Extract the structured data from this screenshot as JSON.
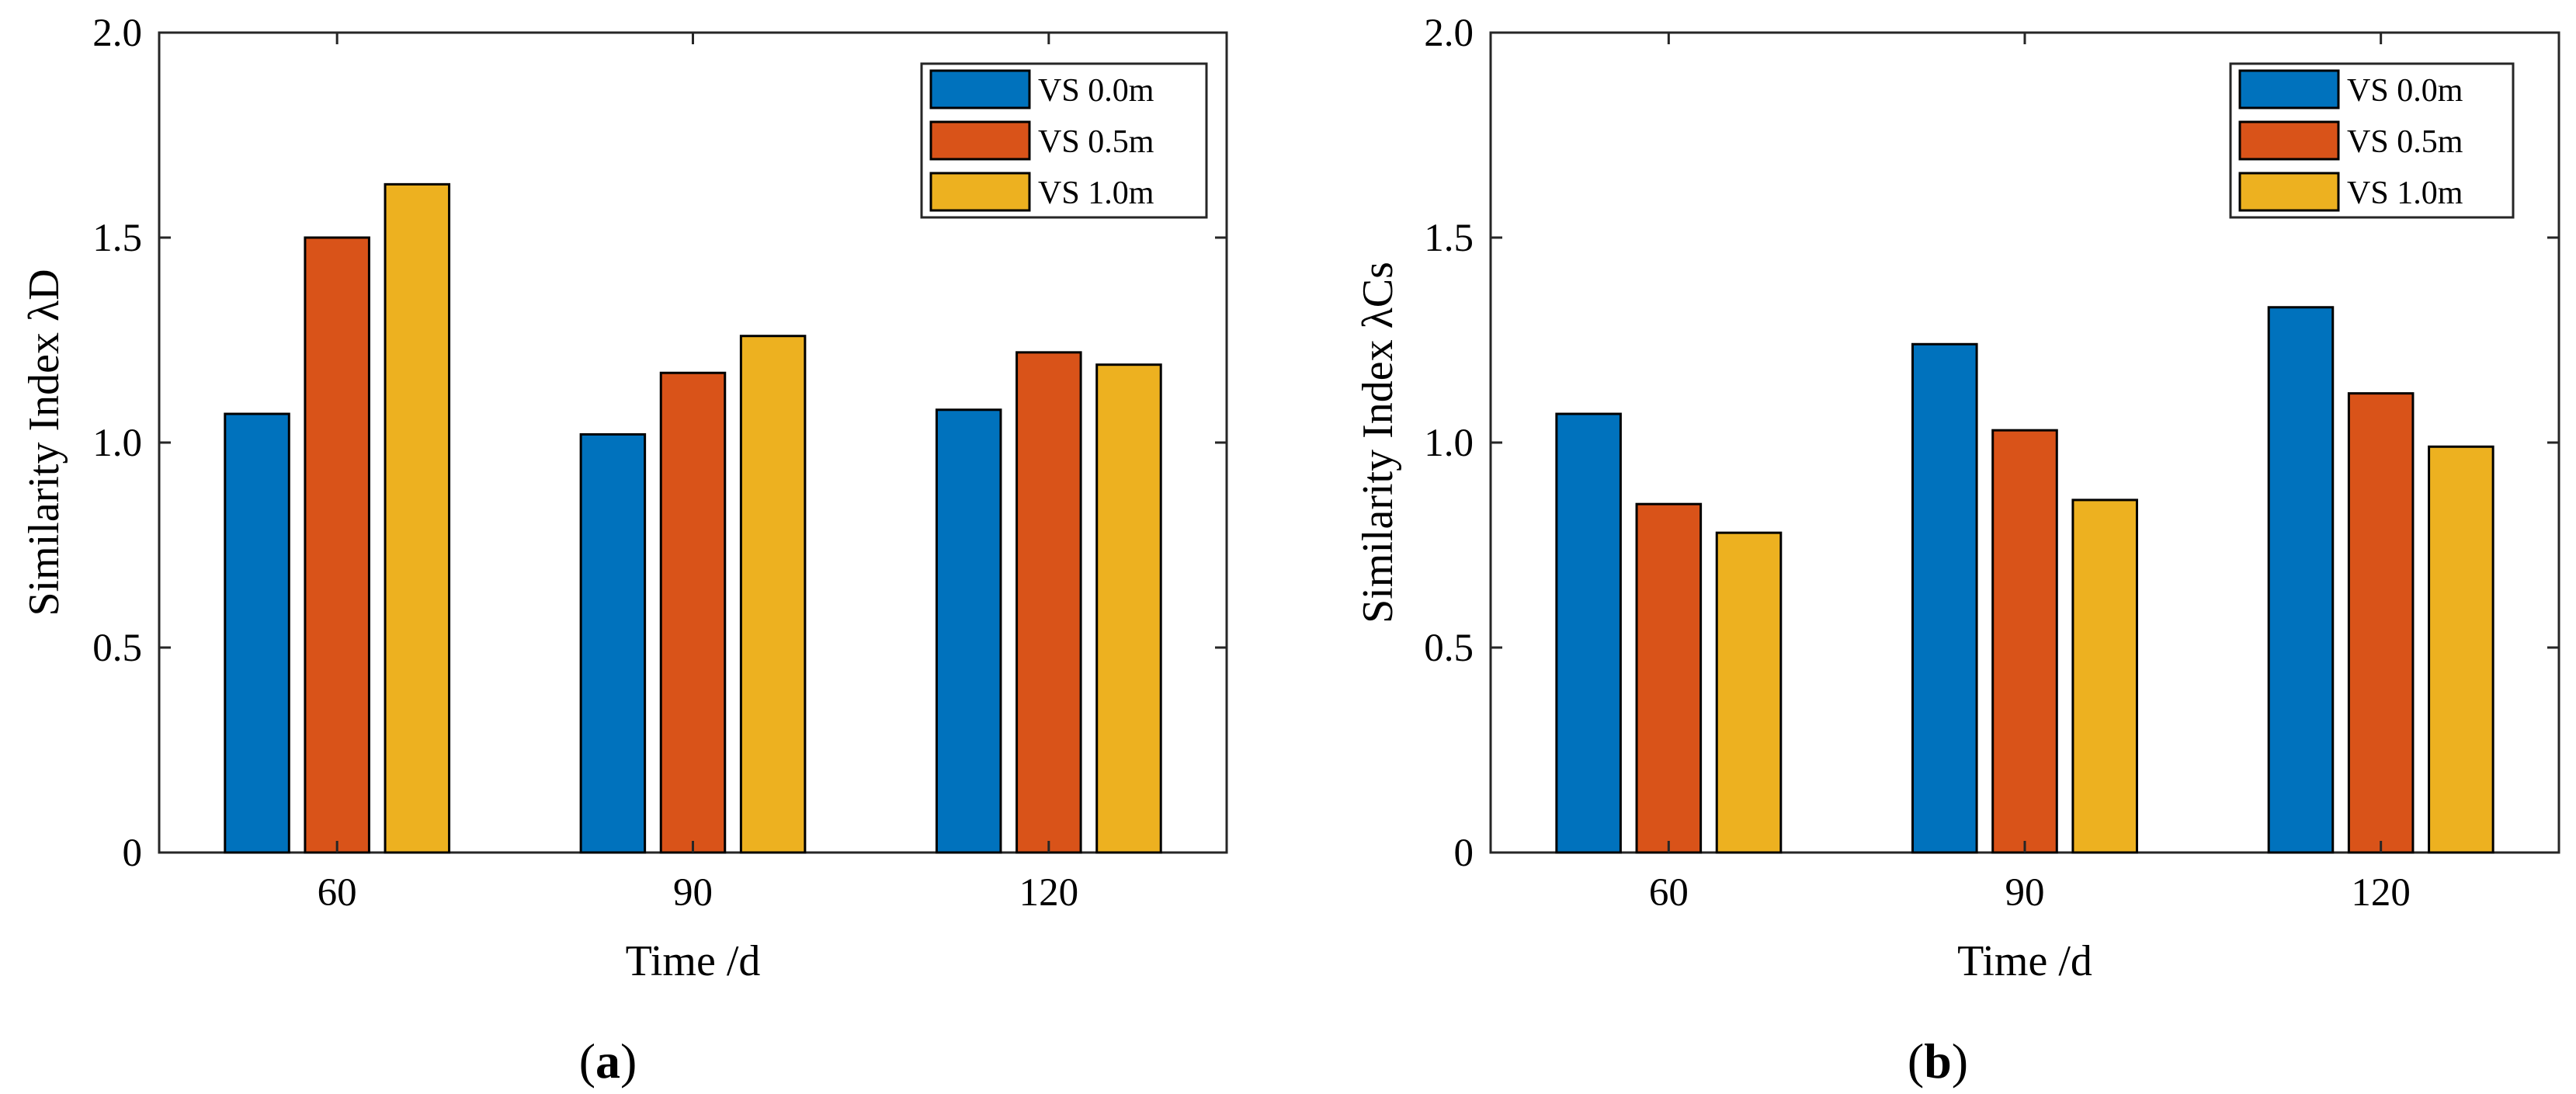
{
  "chart_data": [
    {
      "type": "bar",
      "panel_label": "a",
      "categories": [
        "60",
        "90",
        "120"
      ],
      "series": [
        {
          "name": "VS 0.0m",
          "color": "#0072BD",
          "values": [
            1.07,
            1.02,
            1.08
          ]
        },
        {
          "name": "VS 0.5m",
          "color": "#D95319",
          "values": [
            1.5,
            1.17,
            1.22
          ]
        },
        {
          "name": "VS 1.0m",
          "color": "#EDB120",
          "values": [
            1.63,
            1.26,
            1.19
          ]
        }
      ],
      "title": "",
      "xlabel": "Time /d",
      "ylabel": "Similarity Index λD",
      "ylim": [
        0,
        2.0
      ],
      "yticks": [
        0,
        0.5,
        1.0,
        1.5,
        2.0
      ],
      "ytick_labels": [
        "0",
        "0.5",
        "1.0",
        "1.5",
        "2.0"
      ],
      "grid": false,
      "legend_position": "top-right"
    },
    {
      "type": "bar",
      "panel_label": "b",
      "categories": [
        "60",
        "90",
        "120"
      ],
      "series": [
        {
          "name": "VS 0.0m",
          "color": "#0072BD",
          "values": [
            1.07,
            1.24,
            1.33
          ]
        },
        {
          "name": "VS 0.5m",
          "color": "#D95319",
          "values": [
            0.85,
            1.03,
            1.12
          ]
        },
        {
          "name": "VS 1.0m",
          "color": "#EDB120",
          "values": [
            0.78,
            0.86,
            0.99
          ]
        }
      ],
      "title": "",
      "xlabel": "Time /d",
      "ylabel": "Similarity Index λCs",
      "ylim": [
        0,
        2.0
      ],
      "yticks": [
        0,
        0.5,
        1.0,
        1.5,
        2.0
      ],
      "ytick_labels": [
        "0",
        "0.5",
        "1.0",
        "1.5",
        "2.0"
      ],
      "grid": false,
      "legend_position": "top-right"
    }
  ]
}
